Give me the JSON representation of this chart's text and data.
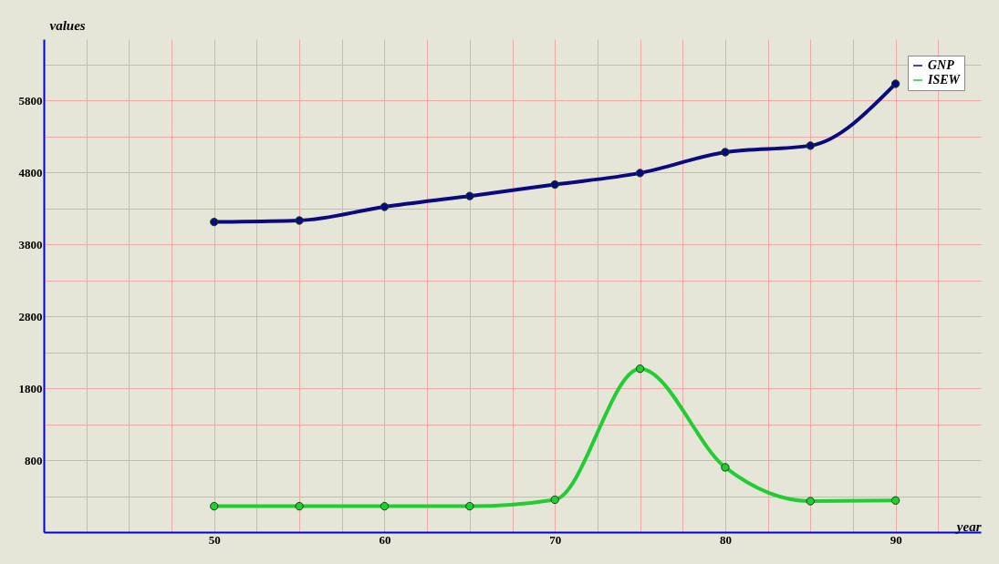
{
  "chart_data": {
    "type": "line",
    "xlabel": "year",
    "ylabel": "values",
    "x": [
      50,
      55,
      60,
      65,
      70,
      75,
      80,
      85,
      90
    ],
    "series": [
      {
        "name": "GNP",
        "color": "#0a0a80",
        "values": [
          4110,
          4130,
          4320,
          4470,
          4630,
          4790,
          5080,
          5170,
          6030
        ]
      },
      {
        "name": "ISEW",
        "color": "#22cc33",
        "values": [
          160,
          160,
          160,
          160,
          250,
          2070,
          700,
          230,
          240
        ]
      }
    ],
    "xlim": [
      40,
      95
    ],
    "ylim": [
      -200,
      6650
    ],
    "xticks": [
      {
        "value": 42.5,
        "label": null
      },
      {
        "value": 45,
        "label": null
      },
      {
        "value": 47.5,
        "label": null
      },
      50,
      {
        "value": 52.5,
        "label": null
      },
      {
        "value": 55,
        "label": null
      },
      {
        "value": 57.5,
        "label": null
      },
      60,
      {
        "value": 62.5,
        "label": null
      },
      {
        "value": 65,
        "label": null
      },
      {
        "value": 67.5,
        "label": null
      },
      70,
      {
        "value": 72.5,
        "label": null
      },
      {
        "value": 75,
        "label": null
      },
      {
        "value": 77.5,
        "label": null
      },
      80,
      {
        "value": 82.5,
        "label": null
      },
      {
        "value": 85,
        "label": null
      },
      {
        "value": 87.5,
        "label": null
      },
      90,
      {
        "value": 92.5,
        "label": null
      }
    ],
    "yticks": [
      {
        "value": 300,
        "label": null
      },
      800,
      {
        "value": 1300,
        "label": null
      },
      1800,
      {
        "value": 2300,
        "label": null
      },
      2800,
      {
        "value": 3300,
        "label": null
      },
      3800,
      {
        "value": 4300,
        "label": null
      },
      4800,
      {
        "value": 5300,
        "label": null
      },
      5800,
      {
        "value": 6300,
        "label": null
      }
    ],
    "grid": true,
    "legend": "top right",
    "marker": "circle",
    "line_style": "solid"
  }
}
